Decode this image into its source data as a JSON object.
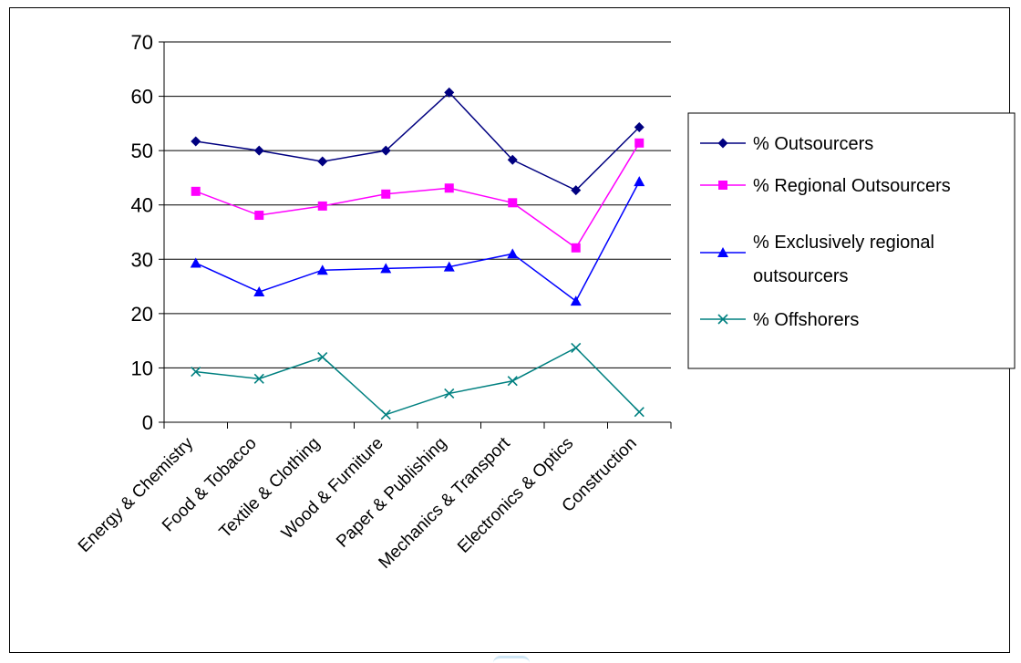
{
  "chart_data": {
    "type": "line",
    "categories": [
      "Energy & Chemistry",
      "Food & Tobacco",
      "Textile & Clothing",
      "Wood & Furniture",
      "Paper & Publishing",
      "Mechanics & Transport",
      "Electronics & Optics",
      "Construction"
    ],
    "series": [
      {
        "name": "% Outsourcers",
        "values": [
          51.7,
          50.0,
          48.0,
          50.0,
          60.7,
          48.3,
          42.7,
          54.3
        ],
        "color": "#000080",
        "marker": "diamond"
      },
      {
        "name": "% Regional Outsourcers",
        "values": [
          42.5,
          38.1,
          39.8,
          42.0,
          43.1,
          40.4,
          32.1,
          51.4
        ],
        "color": "#FF00FF",
        "marker": "square"
      },
      {
        "name": "% Exclusively regional outsourcers",
        "values": [
          29.3,
          24.0,
          28.0,
          28.3,
          28.6,
          31.0,
          22.3,
          44.3
        ],
        "color": "#0000FF",
        "marker": "triangle"
      },
      {
        "name": "% Offshorers",
        "values": [
          9.3,
          8.0,
          12.0,
          1.4,
          5.3,
          7.6,
          13.7,
          1.9
        ],
        "color": "#008080",
        "marker": "x"
      }
    ],
    "yticks": [
      "0",
      "10",
      "20",
      "30",
      "40",
      "50",
      "60",
      "70"
    ],
    "ylim": [
      0,
      70
    ],
    "grid": true,
    "legend_position": "right",
    "title": "",
    "xlabel": "",
    "ylabel": ""
  }
}
